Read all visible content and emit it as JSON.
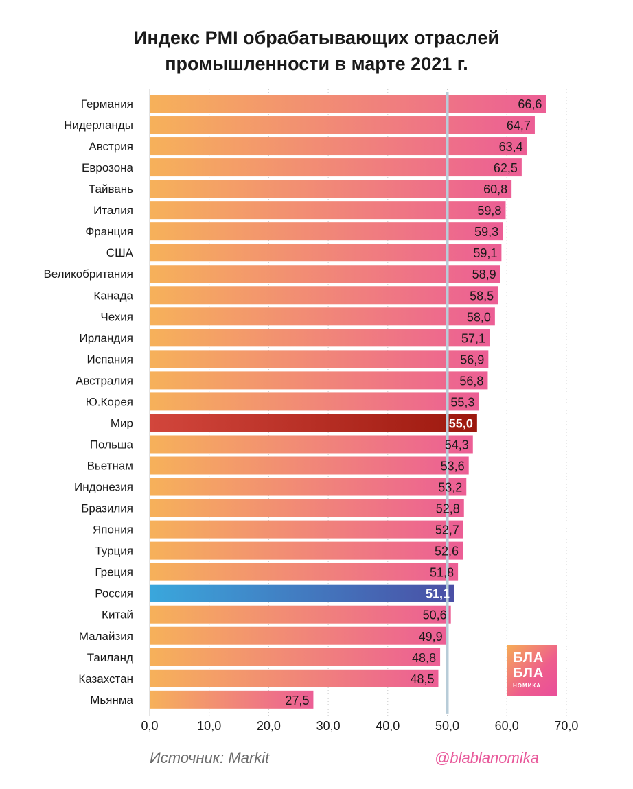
{
  "title": [
    "Индекс PMI обрабатывающих отраслей",
    "промышленности в марте 2021 г."
  ],
  "source": "Источник: Markit",
  "handle": "@blablanomika",
  "logo": {
    "line1": "БЛА",
    "line2": "БЛА",
    "line3": "НОМИКА"
  },
  "colors": {
    "bar_start": "#f6b15a",
    "bar_end": "#ec5e95",
    "world_start": "#d2463c",
    "world_end": "#9c180e",
    "russia_start": "#3aa7dc",
    "russia_end": "#4a4fa5",
    "ref_line": "#b8ccd8"
  },
  "chart_data": {
    "type": "bar",
    "orientation": "horizontal",
    "categories": [
      "Германия",
      "Нидерланды",
      "Австрия",
      "Еврозона",
      "Тайвань",
      "Италия",
      "Франция",
      "США",
      "Великобритания",
      "Канада",
      "Чехия",
      "Ирландия",
      "Испания",
      "Австралия",
      "Ю.Корея",
      "Мир",
      "Польша",
      "Вьетнам",
      "Индонезия",
      "Бразилия",
      "Япония",
      "Турция",
      "Греция",
      "Россия",
      "Китай",
      "Малайзия",
      "Таиланд",
      "Казахстан",
      "Мьянма"
    ],
    "values": [
      66.6,
      64.7,
      63.4,
      62.5,
      60.8,
      59.8,
      59.3,
      59.1,
      58.9,
      58.5,
      58.0,
      57.1,
      56.9,
      56.8,
      55.3,
      55.0,
      54.3,
      53.6,
      53.2,
      52.8,
      52.7,
      52.6,
      51.8,
      51.1,
      50.6,
      49.9,
      48.8,
      48.5,
      27.5
    ],
    "value_labels": [
      "66,6",
      "64,7",
      "63,4",
      "62,5",
      "60,8",
      "59,8",
      "59,3",
      "59,1",
      "58,9",
      "58,5",
      "58,0",
      "57,1",
      "56,9",
      "56,8",
      "55,3",
      "55,0",
      "54,3",
      "53,6",
      "53,2",
      "52,8",
      "52,7",
      "52,6",
      "51,8",
      "51,1",
      "50,6",
      "49,9",
      "48,8",
      "48,5",
      "27,5"
    ],
    "highlight": {
      "Мир": "world",
      "Россия": "russia"
    },
    "xlim": [
      0,
      70
    ],
    "xticks": [
      0,
      10,
      20,
      30,
      40,
      50,
      60,
      70
    ],
    "xtick_labels": [
      "0,0",
      "10,0",
      "20,0",
      "30,0",
      "40,0",
      "50,0",
      "60,0",
      "70,0"
    ],
    "reference_line": 50,
    "grid": "vertical dotted"
  }
}
